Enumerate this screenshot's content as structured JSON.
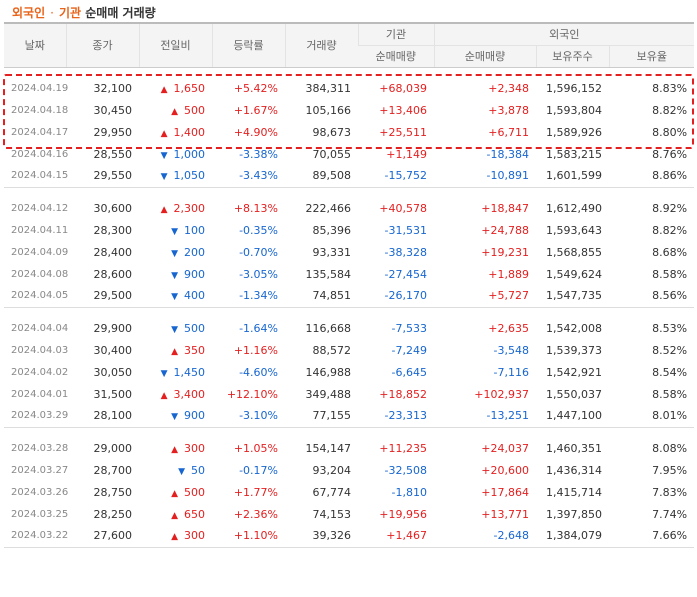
{
  "header": {
    "title_part1": "외국인",
    "title_sep": "·",
    "title_part2": "기관",
    "title_part3": "순매매 거래량"
  },
  "columns": {
    "date": "날짜",
    "close": "종가",
    "change": "전일비",
    "rate": "등락률",
    "volume": "거래량",
    "inst_group": "기관",
    "foreign_group": "외국인",
    "inst_net": "순매매량",
    "foreign_net": "순매매량",
    "holdings": "보유주수",
    "ratio": "보유율"
  },
  "colors": {
    "up": "#e41f1f",
    "down": "#1766d0",
    "accent": "#e8641b"
  },
  "groups": [
    [
      {
        "date": "2024.04.19",
        "close": "32,100",
        "dir": "up",
        "change": "1,650",
        "rate": "+5.42%",
        "volume": "384,311",
        "inst": "+68,039",
        "foreign": "+2,348",
        "holdings": "1,596,152",
        "ratio": "8.83%"
      },
      {
        "date": "2024.04.18",
        "close": "30,450",
        "dir": "up",
        "change": "500",
        "rate": "+1.67%",
        "volume": "105,166",
        "inst": "+13,406",
        "foreign": "+3,878",
        "holdings": "1,593,804",
        "ratio": "8.82%"
      },
      {
        "date": "2024.04.17",
        "close": "29,950",
        "dir": "up",
        "change": "1,400",
        "rate": "+4.90%",
        "volume": "98,673",
        "inst": "+25,511",
        "foreign": "+6,711",
        "holdings": "1,589,926",
        "ratio": "8.80%"
      },
      {
        "date": "2024.04.16",
        "close": "28,550",
        "dir": "down",
        "change": "1,000",
        "rate": "-3.38%",
        "volume": "70,055",
        "inst": "+1,149",
        "foreign": "-18,384",
        "holdings": "1,583,215",
        "ratio": "8.76%"
      },
      {
        "date": "2024.04.15",
        "close": "29,550",
        "dir": "down",
        "change": "1,050",
        "rate": "-3.43%",
        "volume": "89,508",
        "inst": "-15,752",
        "foreign": "-10,891",
        "holdings": "1,601,599",
        "ratio": "8.86%"
      }
    ],
    [
      {
        "date": "2024.04.12",
        "close": "30,600",
        "dir": "up",
        "change": "2,300",
        "rate": "+8.13%",
        "volume": "222,466",
        "inst": "+40,578",
        "foreign": "+18,847",
        "holdings": "1,612,490",
        "ratio": "8.92%"
      },
      {
        "date": "2024.04.11",
        "close": "28,300",
        "dir": "down",
        "change": "100",
        "rate": "-0.35%",
        "volume": "85,396",
        "inst": "-31,531",
        "foreign": "+24,788",
        "holdings": "1,593,643",
        "ratio": "8.82%"
      },
      {
        "date": "2024.04.09",
        "close": "28,400",
        "dir": "down",
        "change": "200",
        "rate": "-0.70%",
        "volume": "93,331",
        "inst": "-38,328",
        "foreign": "+19,231",
        "holdings": "1,568,855",
        "ratio": "8.68%"
      },
      {
        "date": "2024.04.08",
        "close": "28,600",
        "dir": "down",
        "change": "900",
        "rate": "-3.05%",
        "volume": "135,584",
        "inst": "-27,454",
        "foreign": "+1,889",
        "holdings": "1,549,624",
        "ratio": "8.58%"
      },
      {
        "date": "2024.04.05",
        "close": "29,500",
        "dir": "down",
        "change": "400",
        "rate": "-1.34%",
        "volume": "74,851",
        "inst": "-26,170",
        "foreign": "+5,727",
        "holdings": "1,547,735",
        "ratio": "8.56%"
      }
    ],
    [
      {
        "date": "2024.04.04",
        "close": "29,900",
        "dir": "down",
        "change": "500",
        "rate": "-1.64%",
        "volume": "116,668",
        "inst": "-7,533",
        "foreign": "+2,635",
        "holdings": "1,542,008",
        "ratio": "8.53%"
      },
      {
        "date": "2024.04.03",
        "close": "30,400",
        "dir": "up",
        "change": "350",
        "rate": "+1.16%",
        "volume": "88,572",
        "inst": "-7,249",
        "foreign": "-3,548",
        "holdings": "1,539,373",
        "ratio": "8.52%"
      },
      {
        "date": "2024.04.02",
        "close": "30,050",
        "dir": "down",
        "change": "1,450",
        "rate": "-4.60%",
        "volume": "146,988",
        "inst": "-6,645",
        "foreign": "-7,116",
        "holdings": "1,542,921",
        "ratio": "8.54%"
      },
      {
        "date": "2024.04.01",
        "close": "31,500",
        "dir": "up",
        "change": "3,400",
        "rate": "+12.10%",
        "volume": "349,488",
        "inst": "+18,852",
        "foreign": "+102,937",
        "holdings": "1,550,037",
        "ratio": "8.58%"
      },
      {
        "date": "2024.03.29",
        "close": "28,100",
        "dir": "down",
        "change": "900",
        "rate": "-3.10%",
        "volume": "77,155",
        "inst": "-23,313",
        "foreign": "-13,251",
        "holdings": "1,447,100",
        "ratio": "8.01%"
      }
    ],
    [
      {
        "date": "2024.03.28",
        "close": "29,000",
        "dir": "up",
        "change": "300",
        "rate": "+1.05%",
        "volume": "154,147",
        "inst": "+11,235",
        "foreign": "+24,037",
        "holdings": "1,460,351",
        "ratio": "8.08%"
      },
      {
        "date": "2024.03.27",
        "close": "28,700",
        "dir": "down",
        "change": "50",
        "rate": "-0.17%",
        "volume": "93,204",
        "inst": "-32,508",
        "foreign": "+20,600",
        "holdings": "1,436,314",
        "ratio": "7.95%"
      },
      {
        "date": "2024.03.26",
        "close": "28,750",
        "dir": "up",
        "change": "500",
        "rate": "+1.77%",
        "volume": "67,774",
        "inst": "-1,810",
        "foreign": "+17,864",
        "holdings": "1,415,714",
        "ratio": "7.83%"
      },
      {
        "date": "2024.03.25",
        "close": "28,250",
        "dir": "up",
        "change": "650",
        "rate": "+2.36%",
        "volume": "74,153",
        "inst": "+19,956",
        "foreign": "+13,771",
        "holdings": "1,397,850",
        "ratio": "7.74%"
      },
      {
        "date": "2024.03.22",
        "close": "27,600",
        "dir": "up",
        "change": "300",
        "rate": "+1.10%",
        "volume": "39,326",
        "inst": "+1,467",
        "foreign": "-2,648",
        "holdings": "1,384,079",
        "ratio": "7.66%"
      }
    ]
  ]
}
